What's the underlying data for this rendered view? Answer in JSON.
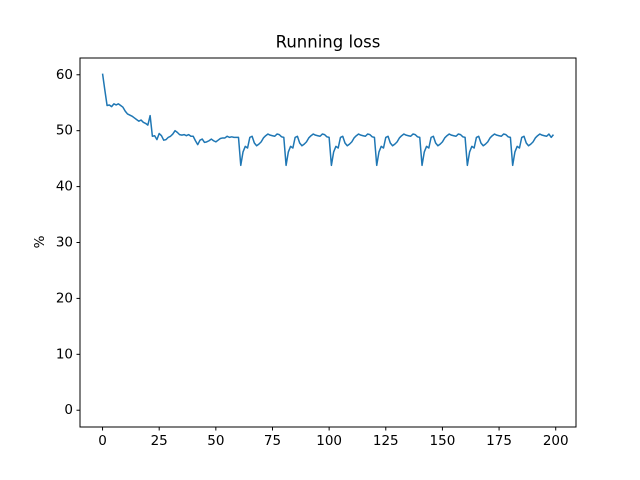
{
  "chart_data": {
    "type": "line",
    "title": "Running loss",
    "ylabel": "%",
    "color": "#1f77b4",
    "x": [
      0,
      1,
      2,
      3,
      4,
      5,
      6,
      7,
      8,
      9,
      10,
      11,
      12,
      13,
      14,
      15,
      16,
      17,
      18,
      19,
      20,
      21,
      22,
      23,
      24,
      25,
      26,
      27,
      28,
      29,
      30,
      31,
      32,
      33,
      34,
      35,
      36,
      37,
      38,
      39,
      40,
      41,
      42,
      43,
      44,
      45,
      46,
      47,
      48,
      49,
      50,
      51,
      52,
      53,
      54,
      55,
      56,
      57,
      58,
      59,
      60,
      61,
      62,
      63,
      64,
      65,
      66,
      67,
      68,
      69,
      70,
      71,
      72,
      73,
      74,
      75,
      76,
      77,
      78,
      79,
      80,
      81,
      82,
      83,
      84,
      85,
      86,
      87,
      88,
      89,
      90,
      91,
      92,
      93,
      94,
      95,
      96,
      97,
      98,
      99,
      100,
      101,
      102,
      103,
      104,
      105,
      106,
      107,
      108,
      109,
      110,
      111,
      112,
      113,
      114,
      115,
      116,
      117,
      118,
      119,
      120,
      121,
      122,
      123,
      124,
      125,
      126,
      127,
      128,
      129,
      130,
      131,
      132,
      133,
      134,
      135,
      136,
      137,
      138,
      139,
      140,
      141,
      142,
      143,
      144,
      145,
      146,
      147,
      148,
      149,
      150,
      151,
      152,
      153,
      154,
      155,
      156,
      157,
      158,
      159,
      160,
      161,
      162,
      163,
      164,
      165,
      166,
      167,
      168,
      169,
      170,
      171,
      172,
      173,
      174,
      175,
      176,
      177,
      178,
      179,
      180,
      181,
      182,
      183,
      184,
      185,
      186,
      187,
      188,
      189,
      190,
      191,
      192,
      193,
      194,
      195,
      196,
      197,
      198,
      199
    ],
    "values": [
      60.2,
      57.3,
      54.5,
      54.6,
      54.3,
      54.8,
      54.6,
      54.8,
      54.5,
      54.2,
      53.5,
      53.0,
      52.8,
      52.6,
      52.3,
      52.0,
      51.7,
      51.9,
      51.5,
      51.3,
      51.0,
      52.7,
      49.0,
      49.1,
      48.4,
      49.5,
      49.1,
      48.3,
      48.4,
      48.8,
      49.0,
      49.4,
      50.0,
      49.7,
      49.3,
      49.2,
      49.3,
      49.1,
      49.3,
      49.0,
      49.0,
      48.2,
      47.5,
      48.3,
      48.5,
      47.9,
      48.0,
      48.2,
      48.5,
      48.2,
      48.0,
      48.3,
      48.6,
      48.7,
      48.7,
      49.0,
      48.8,
      48.9,
      48.8,
      48.8,
      48.8,
      43.8,
      46.2,
      47.2,
      46.9,
      48.8,
      49.0,
      47.8,
      47.3,
      47.6,
      48.0,
      48.7,
      49.1,
      49.4,
      49.2,
      49.1,
      49.0,
      49.4,
      49.3,
      48.9,
      48.8,
      43.8,
      46.2,
      47.2,
      46.9,
      48.8,
      49.0,
      47.8,
      47.3,
      47.6,
      48.0,
      48.7,
      49.1,
      49.4,
      49.2,
      49.1,
      49.0,
      49.4,
      49.3,
      48.9,
      48.8,
      43.8,
      46.2,
      47.2,
      46.9,
      48.8,
      49.0,
      47.8,
      47.3,
      47.6,
      48.0,
      48.7,
      49.1,
      49.4,
      49.2,
      49.1,
      49.0,
      49.4,
      49.3,
      48.9,
      48.8,
      43.8,
      46.2,
      47.2,
      46.9,
      48.8,
      49.0,
      47.8,
      47.3,
      47.6,
      48.0,
      48.7,
      49.1,
      49.4,
      49.2,
      49.1,
      49.0,
      49.4,
      49.3,
      48.9,
      48.8,
      43.8,
      46.2,
      47.2,
      46.9,
      48.8,
      49.0,
      47.8,
      47.3,
      47.6,
      48.0,
      48.7,
      49.1,
      49.4,
      49.2,
      49.1,
      49.0,
      49.4,
      49.3,
      48.9,
      48.8,
      43.8,
      46.2,
      47.2,
      46.9,
      48.8,
      49.0,
      47.8,
      47.3,
      47.6,
      48.0,
      48.7,
      49.1,
      49.4,
      49.2,
      49.1,
      49.0,
      49.4,
      49.3,
      48.9,
      48.8,
      43.8,
      46.2,
      47.2,
      46.9,
      48.8,
      49.0,
      47.8,
      47.3,
      47.6,
      48.0,
      48.7,
      49.1,
      49.4,
      49.2,
      49.1,
      49.0,
      49.4,
      48.8,
      49.3
    ],
    "xlim": [
      -9.95,
      208.95
    ],
    "xticks": [
      0,
      25,
      50,
      75,
      100,
      125,
      150,
      175,
      200
    ],
    "ylim": [
      -3,
      63
    ],
    "yticks": [
      0,
      10,
      20,
      30,
      40,
      50,
      60
    ]
  }
}
